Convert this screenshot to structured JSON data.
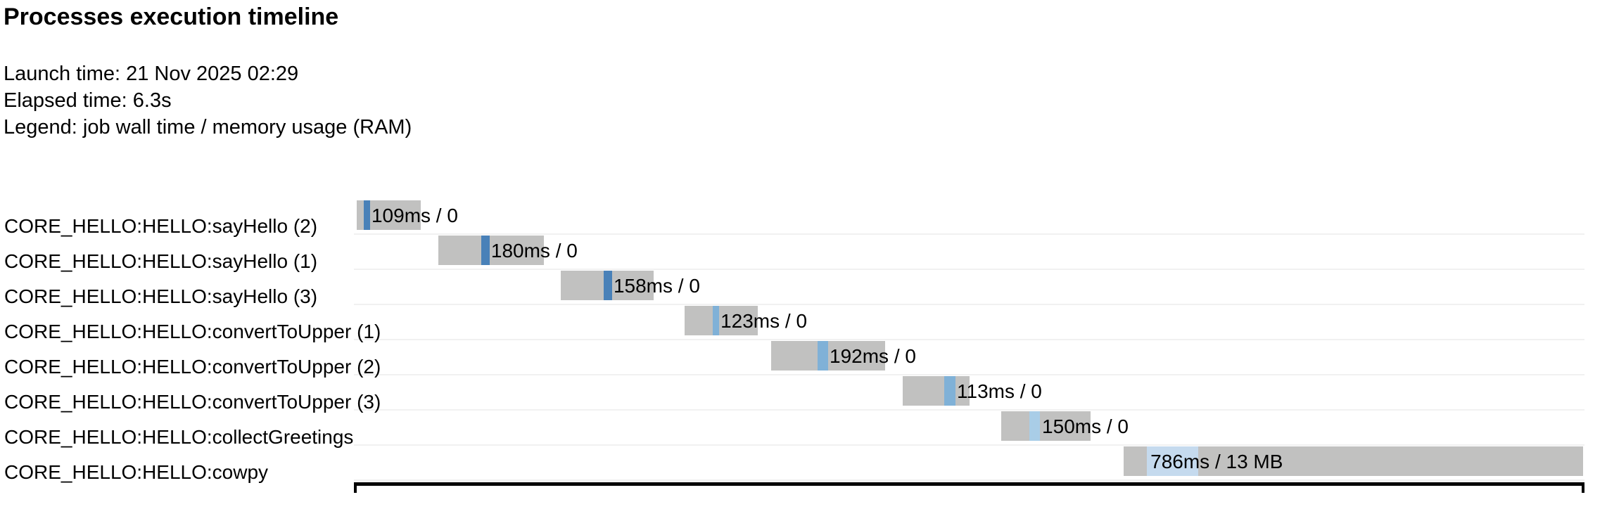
{
  "header": {
    "title": "Processes execution timeline",
    "launch_time": "Launch time: 21 Nov 2025 02:29",
    "elapsed_time": "Elapsed time: 6.3s",
    "legend": "Legend: job wall time / memory usage (RAM)"
  },
  "colors": {
    "bar_track": "#c1c1c0",
    "row_divider": "#f1f1f1",
    "text": "#000000",
    "box_border": "#000000",
    "process_sayHello": "#4981b8",
    "process_convertToUpper": "#80b1d7",
    "process_collectGreetings": "#a9cde7",
    "process_cowpy": "#c5daee"
  },
  "chart_data": {
    "type": "gantt",
    "title": "Processes execution timeline",
    "legend": "job wall time / memory usage (RAM)",
    "launch_time": "21 Nov 2025 02:29",
    "elapsed_time_s": 6.3,
    "time_axis": {
      "total_elapsed_ms": 6300,
      "axis_visible": false
    },
    "tasks": [
      {
        "name": "CORE_HELLO:HELLO:sayHello (2)",
        "process": "sayHello",
        "value_label": "109ms / 0",
        "wall_time": "109ms",
        "memory": "0",
        "bar_start_ms": 14,
        "bar_end_ms": 342,
        "run_start_ms": 50,
        "run_end_ms": 83,
        "label_anchor_ms": 90,
        "color": "#4981b8"
      },
      {
        "name": "CORE_HELLO:HELLO:sayHello (1)",
        "process": "sayHello",
        "value_label": "180ms / 0",
        "wall_time": "180ms",
        "memory": "0",
        "bar_start_ms": 432,
        "bar_end_ms": 973,
        "run_start_ms": 652,
        "run_end_ms": 695,
        "label_anchor_ms": 702,
        "color": "#4981b8"
      },
      {
        "name": "CORE_HELLO:HELLO:sayHello (3)",
        "process": "sayHello",
        "value_label": "158ms / 0",
        "wall_time": "158ms",
        "memory": "0",
        "bar_start_ms": 1059,
        "bar_end_ms": 1535,
        "run_start_ms": 1279,
        "run_end_ms": 1322,
        "label_anchor_ms": 1329,
        "color": "#4981b8"
      },
      {
        "name": "CORE_HELLO:HELLO:convertToUpper (1)",
        "process": "convertToUpper",
        "value_label": "123ms / 0",
        "wall_time": "123ms",
        "memory": "0",
        "bar_start_ms": 1693,
        "bar_end_ms": 2068,
        "run_start_ms": 1837,
        "run_end_ms": 1870,
        "label_anchor_ms": 1877,
        "color": "#80b1d7"
      },
      {
        "name": "CORE_HELLO:HELLO:convertToUpper (2)",
        "process": "convertToUpper",
        "value_label": "192ms / 0",
        "wall_time": "192ms",
        "memory": "0",
        "bar_start_ms": 2136,
        "bar_end_ms": 2720,
        "run_start_ms": 2374,
        "run_end_ms": 2428,
        "label_anchor_ms": 2435,
        "color": "#80b1d7"
      },
      {
        "name": "CORE_HELLO:HELLO:convertToUpper (3)",
        "process": "convertToUpper",
        "value_label": "113ms / 0",
        "wall_time": "113ms",
        "memory": "0",
        "bar_start_ms": 2810,
        "bar_end_ms": 3152,
        "run_start_ms": 3022,
        "run_end_ms": 3080,
        "label_anchor_ms": 3087,
        "color": "#80b1d7"
      },
      {
        "name": "CORE_HELLO:HELLO:collectGreetings",
        "process": "collectGreetings",
        "value_label": "150ms / 0",
        "wall_time": "150ms",
        "memory": "0",
        "bar_start_ms": 3314,
        "bar_end_ms": 3771,
        "run_start_ms": 3458,
        "run_end_ms": 3512,
        "label_anchor_ms": 3523,
        "color": "#a9cde7"
      },
      {
        "name": "CORE_HELLO:HELLO:cowpy",
        "process": "cowpy",
        "value_label": "786ms / 13 MB",
        "wall_time": "786ms",
        "memory": "13 MB",
        "bar_start_ms": 3941,
        "bar_end_ms": 6293,
        "run_start_ms": 4060,
        "run_end_ms": 4323,
        "label_anchor_ms": 4078,
        "color": "#c5daee"
      }
    ]
  }
}
